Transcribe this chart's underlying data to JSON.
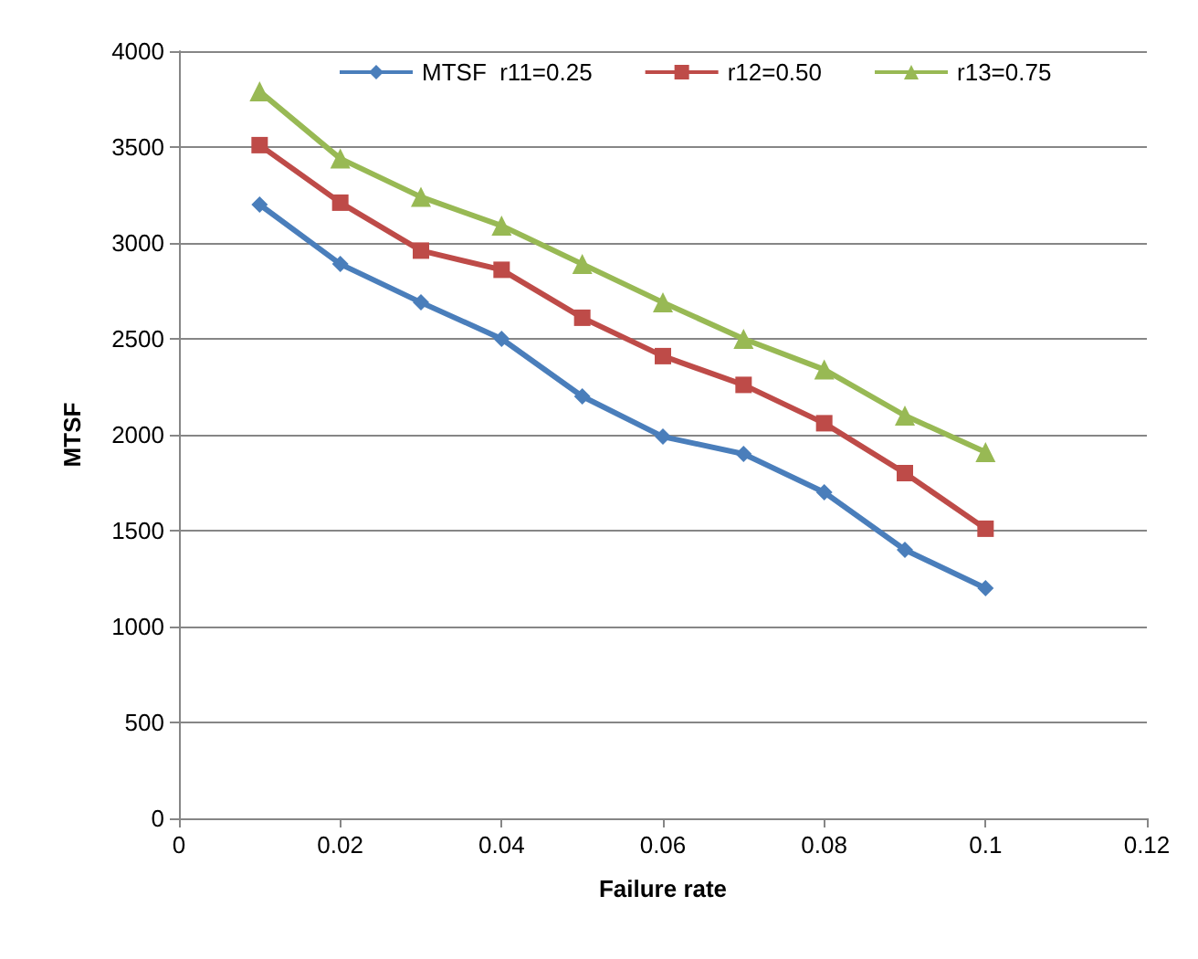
{
  "chart_data": {
    "type": "line",
    "xlabel": "Failure rate",
    "ylabel": "MTSF",
    "x": [
      0.01,
      0.02,
      0.03,
      0.04,
      0.05,
      0.06,
      0.07,
      0.08,
      0.09,
      0.1
    ],
    "series": [
      {
        "name": "MTSF  r11=0.25",
        "color": "#4a7ebb",
        "marker": "diamond",
        "values": [
          3200,
          2890,
          2690,
          2500,
          2200,
          1990,
          1900,
          1700,
          1400,
          1200
        ]
      },
      {
        "name": "r12=0.50",
        "color": "#be4b48",
        "marker": "square",
        "values": [
          3510,
          3210,
          2960,
          2860,
          2610,
          2410,
          2260,
          2060,
          1800,
          1510
        ]
      },
      {
        "name": "r13=0.75",
        "color": "#98b954",
        "marker": "triangle",
        "values": [
          3790,
          3440,
          3240,
          3090,
          2890,
          2690,
          2500,
          2340,
          2100,
          1910
        ]
      }
    ],
    "xlim": [
      0,
      0.12
    ],
    "xticks": [
      0,
      0.02,
      0.04,
      0.06,
      0.08,
      0.1,
      0.12
    ],
    "ylim": [
      0,
      4000
    ],
    "yticks": [
      0,
      500,
      1000,
      1500,
      2000,
      2500,
      3000,
      3500,
      4000
    ],
    "grid": "y",
    "legend": "top",
    "line_style": "solid"
  }
}
